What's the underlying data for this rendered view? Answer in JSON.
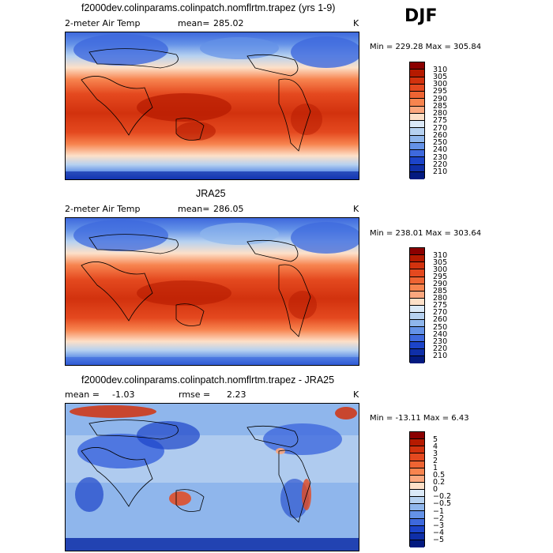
{
  "season": "DJF",
  "panels": [
    {
      "title": "f2000dev.colinparams.colinpatch.nomflrtm.trapez (yrs 1-9)",
      "left_label": "2-meter Air Temp",
      "stat_label": "mean=",
      "stat_value": "285.02",
      "units": "K",
      "minmax": "Min = 229.28 Max = 305.84",
      "chart_data": {
        "type": "heatmap",
        "variable": "2-meter Air Temp",
        "units": "K",
        "mean": 285.02,
        "min": 229.28,
        "max": 305.84,
        "colorbar_levels": [
          "310",
          "305",
          "300",
          "295",
          "290",
          "285",
          "280",
          "275",
          "270",
          "260",
          "250",
          "240",
          "230",
          "220",
          "210"
        ],
        "colors": [
          "#8b0000",
          "#b51a00",
          "#d2320e",
          "#e4491f",
          "#ee6433",
          "#f7844f",
          "#fba77e",
          "#fde0c8",
          "#dbe9f7",
          "#b6d1f0",
          "#8fb6ec",
          "#6492e7",
          "#3e69dd",
          "#1c44c9",
          "#0f2fa8",
          "#031a80"
        ]
      }
    },
    {
      "title": "JRA25",
      "left_label": "2-meter Air Temp",
      "stat_label": "mean=",
      "stat_value": "286.05",
      "units": "K",
      "minmax": "Min = 238.01 Max = 303.64",
      "chart_data": {
        "type": "heatmap",
        "variable": "2-meter Air Temp",
        "units": "K",
        "mean": 286.05,
        "min": 238.01,
        "max": 303.64,
        "colorbar_levels": [
          "310",
          "305",
          "300",
          "295",
          "290",
          "285",
          "280",
          "275",
          "270",
          "260",
          "250",
          "240",
          "230",
          "220",
          "210"
        ],
        "colors": [
          "#8b0000",
          "#b51a00",
          "#d2320e",
          "#e4491f",
          "#ee6433",
          "#f7844f",
          "#fba77e",
          "#fde0c8",
          "#dbe9f7",
          "#b6d1f0",
          "#8fb6ec",
          "#6492e7",
          "#3e69dd",
          "#1c44c9",
          "#0f2fa8",
          "#031a80"
        ]
      }
    },
    {
      "title": "f2000dev.colinparams.colinpatch.nomflrtm.trapez - JRA25",
      "left_label": "mean =",
      "left_value": "-1.03",
      "stat_label": "rmse =",
      "stat_value": "2.23",
      "units": "K",
      "minmax": "Min = -13.11 Max =   6.43",
      "chart_data": {
        "type": "heatmap",
        "variable": "difference",
        "units": "K",
        "mean": -1.03,
        "rmse": 2.23,
        "min": -13.11,
        "max": 6.43,
        "colorbar_levels": [
          "5",
          "4",
          "3",
          "2",
          "1",
          "0.5",
          "0.2",
          "0",
          "−0.2",
          "−0.5",
          "−1",
          "−2",
          "−3",
          "−4",
          "−5"
        ],
        "colors": [
          "#8b0000",
          "#b51a00",
          "#d2320e",
          "#e4491f",
          "#ee6433",
          "#f7844f",
          "#fba77e",
          "#fde0c8",
          "#dbe9f7",
          "#b6d1f0",
          "#8fb6ec",
          "#6492e7",
          "#3e69dd",
          "#1c44c9",
          "#0f2fa8",
          "#031a80"
        ]
      }
    }
  ]
}
